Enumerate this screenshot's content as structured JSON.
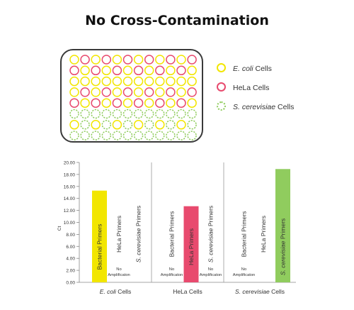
{
  "title": "No Cross-Contamination",
  "colors": {
    "ecoli": "#f2e600",
    "hela": "#e84a6e",
    "scerevisiae": "#90cc5e",
    "axis": "#888888",
    "divider": "#999999"
  },
  "plate": {
    "rows": [
      [
        "ecoli",
        "hela",
        "ecoli",
        "hela",
        "ecoli",
        "hela",
        "ecoli",
        "hela",
        "ecoli",
        "hela",
        "ecoli",
        "hela"
      ],
      [
        "hela",
        "ecoli",
        "hela",
        "ecoli",
        "hela",
        "ecoli",
        "hela",
        "ecoli",
        "hela",
        "ecoli",
        "hela",
        "ecoli"
      ],
      [
        "ecoli",
        "ecoli",
        "ecoli",
        "ecoli",
        "ecoli",
        "ecoli",
        "ecoli",
        "ecoli",
        "ecoli",
        "ecoli",
        "ecoli",
        "ecoli"
      ],
      [
        "ecoli",
        "hela",
        "ecoli",
        "hela",
        "ecoli",
        "hela",
        "ecoli",
        "hela",
        "ecoli",
        "hela",
        "ecoli",
        "hela"
      ],
      [
        "hela",
        "ecoli",
        "hela",
        "ecoli",
        "hela",
        "ecoli",
        "hela",
        "ecoli",
        "hela",
        "ecoli",
        "hela",
        "ecoli"
      ],
      [
        "scerevisiae",
        "scerevisiae",
        "scerevisiae",
        "scerevisiae",
        "scerevisiae",
        "scerevisiae",
        "scerevisiae",
        "scerevisiae",
        "scerevisiae",
        "scerevisiae",
        "scerevisiae",
        "scerevisiae"
      ],
      [
        "ecoli",
        "scerevisiae",
        "ecoli",
        "scerevisiae",
        "ecoli",
        "scerevisiae",
        "ecoli",
        "scerevisiae",
        "ecoli",
        "scerevisiae",
        "ecoli",
        "scerevisiae"
      ],
      [
        "scerevisiae",
        "scerevisiae",
        "scerevisiae",
        "scerevisiae",
        "scerevisiae",
        "scerevisiae",
        "scerevisiae",
        "scerevisiae",
        "scerevisiae",
        "scerevisiae",
        "scerevisiae",
        "scerevisiae"
      ]
    ]
  },
  "legend": [
    {
      "key": "ecoli",
      "italic": "E. coli",
      "rest": " Cells"
    },
    {
      "key": "hela",
      "italic": "",
      "rest": "HeLa Cells"
    },
    {
      "key": "scerevisiae",
      "italic": "S. cerevisiae",
      "rest": " Cells"
    }
  ],
  "chart_data": {
    "type": "bar",
    "ylabel": "Ct",
    "ylim": [
      0,
      20
    ],
    "yticks": [
      "0.00",
      "2.00",
      "4.00",
      "6.00",
      "8.00",
      "10.00",
      "12.00",
      "14.00",
      "16.00",
      "18.00",
      "20.00"
    ],
    "groups": [
      {
        "label_italic": "E. coli",
        "label_rest": " Cells",
        "bars": [
          {
            "label_italic": "",
            "label_rest": "Bacterial Primers",
            "value": 15.3,
            "color_key": "ecoli",
            "note": ""
          },
          {
            "label_italic": "",
            "label_rest": "HeLa Primers",
            "value": 0,
            "color_key": "",
            "note": "No Amplificaton"
          },
          {
            "label_italic": "S. cerevisiae",
            "label_rest": " Primers",
            "value": 0,
            "color_key": "",
            "note": ""
          }
        ]
      },
      {
        "label_italic": "",
        "label_rest": "HeLa Cells",
        "bars": [
          {
            "label_italic": "",
            "label_rest": "Bacterial Primers",
            "value": 0,
            "color_key": "",
            "note": "No Amplificaton"
          },
          {
            "label_italic": "",
            "label_rest": "HeLa Primers",
            "value": 12.7,
            "color_key": "hela",
            "note": ""
          },
          {
            "label_italic": "S. cerevisiae",
            "label_rest": " Primers",
            "value": 0,
            "color_key": "",
            "note": "No Amplificaton"
          }
        ]
      },
      {
        "label_italic": "S. cerevisiae",
        "label_rest": " Cells",
        "bars": [
          {
            "label_italic": "",
            "label_rest": "Bacterial Primers",
            "value": 0,
            "color_key": "",
            "note": "No Amplificaton"
          },
          {
            "label_italic": "",
            "label_rest": "HeLa Primers",
            "value": 0,
            "color_key": "",
            "note": ""
          },
          {
            "label_italic": "S. cerevisiae",
            "label_rest": " Primers",
            "value": 18.9,
            "color_key": "scerevisiae",
            "note": ""
          }
        ]
      }
    ]
  }
}
